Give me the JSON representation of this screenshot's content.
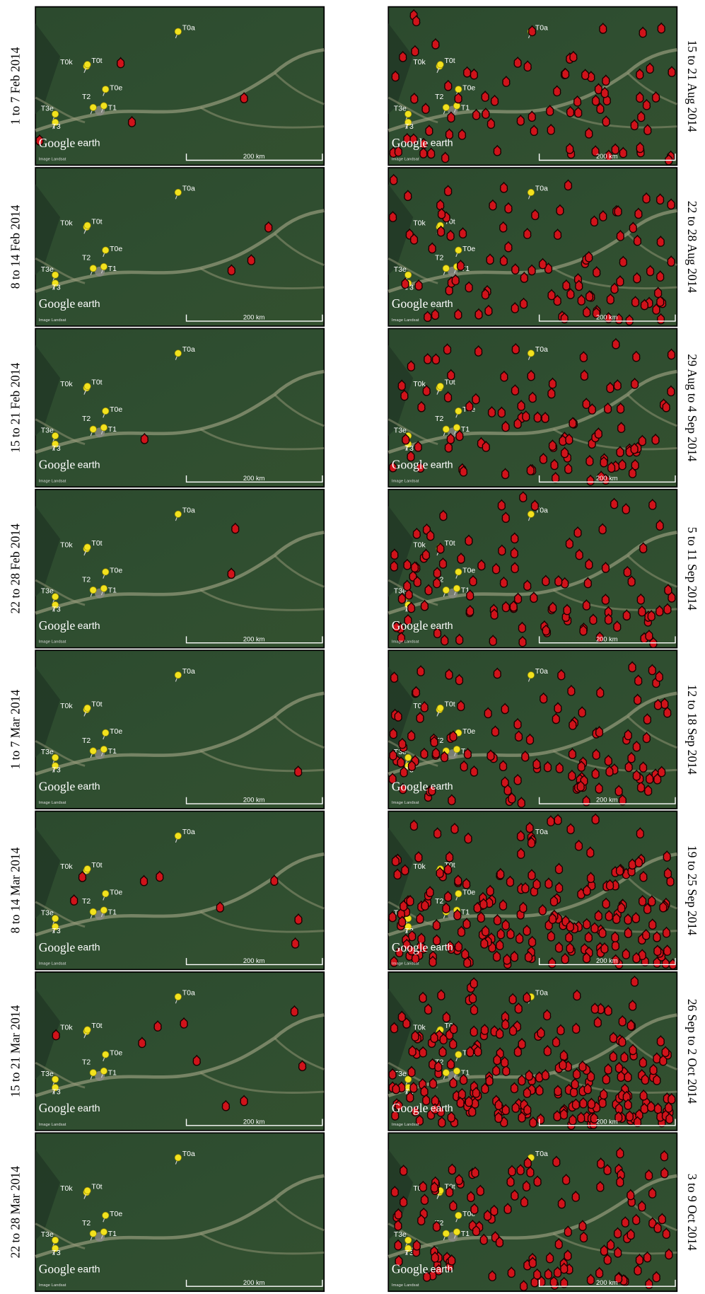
{
  "panels": {
    "left": [
      "1 to 7 Feb 2014",
      "8 to 14 Feb 2014",
      "15 to 21 Feb 2014",
      "22 to 28 Feb 2014",
      "1 to 7 Mar 2014",
      "8 to 14 Mar 2014",
      "15 to 21 Mar 2014",
      "22 to 28 Mar 2014"
    ],
    "right": [
      "15 to 21 Aug 2014",
      "22 to 28 Aug 2014",
      "29 Aug to 4 Sep 2014",
      "5 to 11 Sep 2014",
      "12 to 18 Sep 2014",
      "19 to 25 Sep 2014",
      "26 Sep to 2 Oct 2014",
      "3 to 9 Oct 2014"
    ]
  },
  "map": {
    "pins": [
      "T0a",
      "T0k",
      "T0t",
      "T0e",
      "T2",
      "T1",
      "T3e",
      "T3"
    ],
    "logo_google": "Google",
    "logo_earth": "earth",
    "credit": "Image Landsat",
    "scale": "200 km"
  }
}
